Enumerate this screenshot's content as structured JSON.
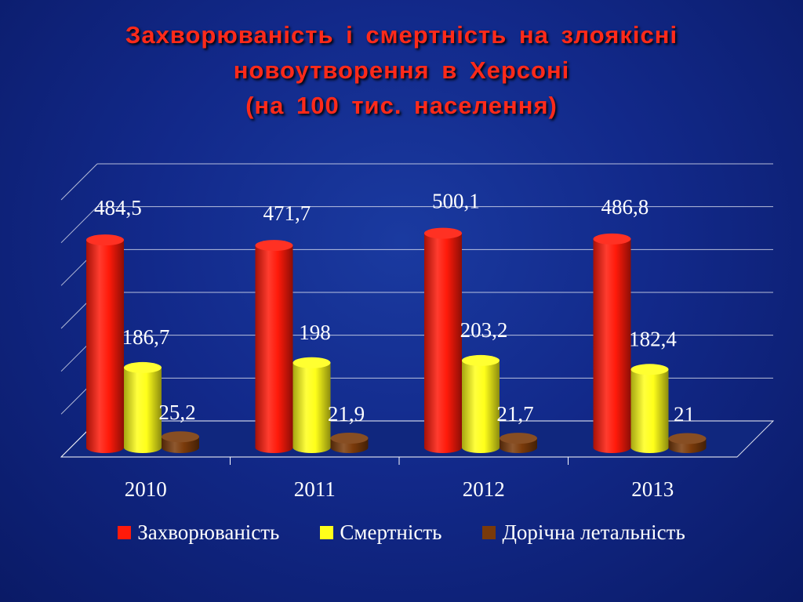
{
  "title": {
    "line1": "Захворюваність  і  смертність  на  злоякісні",
    "line2": "новоутворення  в  Херсоні",
    "line3": "(на  100  тис.  населення)"
  },
  "chart_data": {
    "type": "bar",
    "categories": [
      "2010",
      "2011",
      "2012",
      "2013"
    ],
    "series": [
      {
        "name": "Захворюваність",
        "color": "#ff1a0a",
        "values": [
          484.5,
          471.7,
          500.1,
          486.8
        ],
        "labels": [
          "484,5",
          "471,7",
          "500,1",
          "486,8"
        ]
      },
      {
        "name": "Смертність",
        "color": "#ffff1a",
        "values": [
          186.7,
          198,
          203.2,
          182.4
        ],
        "labels": [
          "186,7",
          "198",
          "203,2",
          "182,4"
        ]
      },
      {
        "name": "Дорічна летальність",
        "color": "#7a3a0a",
        "values": [
          25.2,
          21.9,
          21.7,
          21
        ],
        "labels": [
          "25,2",
          "21,9",
          "21,7",
          "21"
        ]
      }
    ],
    "ylim": [
      0,
      600
    ],
    "grid": true,
    "legend": "bottom"
  }
}
